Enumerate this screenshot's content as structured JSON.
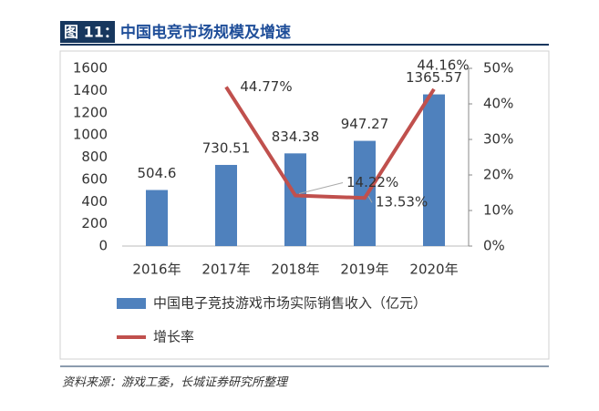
{
  "chart_data": {
    "type": "bar-line",
    "figure_label": "图 11：",
    "title": "中国电竞市场规模及增速",
    "categories": [
      "2016年",
      "2017年",
      "2018年",
      "2019年",
      "2020年"
    ],
    "series": [
      {
        "name": "中国电子竞技游戏市场实际销售收入（亿元）",
        "type": "bar",
        "axis": "y",
        "color": "#4f81bd",
        "values": [
          504.6,
          730.51,
          834.38,
          947.27,
          1365.57
        ]
      },
      {
        "name": "增长率",
        "type": "line",
        "axis": "y2",
        "color": "#c0504d",
        "values": [
          null,
          44.77,
          14.22,
          13.53,
          44.16
        ],
        "value_labels": [
          null,
          "44.77%",
          "14.22%",
          "13.53%",
          "44.16%"
        ]
      }
    ],
    "ylim": [
      0,
      1600
    ],
    "yticks": [
      0,
      200,
      400,
      600,
      800,
      1000,
      1200,
      1400,
      1600
    ],
    "y2lim": [
      0,
      50
    ],
    "y2ticks": [
      {
        "value": 0,
        "label": "0%"
      },
      {
        "value": 10,
        "label": "10%"
      },
      {
        "value": 20,
        "label": "20%"
      },
      {
        "value": 30,
        "label": "30%"
      },
      {
        "value": 40,
        "label": "40%"
      },
      {
        "value": 50,
        "label": "50%"
      }
    ],
    "source": "资料来源：游戏工委，长城证券研究所整理"
  }
}
